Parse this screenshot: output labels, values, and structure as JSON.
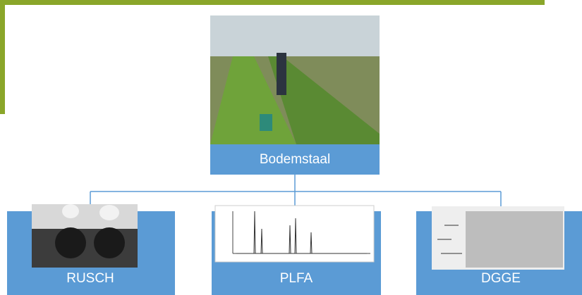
{
  "nodes": [
    {
      "label": "Bodemstaal"
    },
    {
      "label": "RUSCH"
    },
    {
      "label": "PLFA"
    },
    {
      "label": "DGGE"
    }
  ]
}
